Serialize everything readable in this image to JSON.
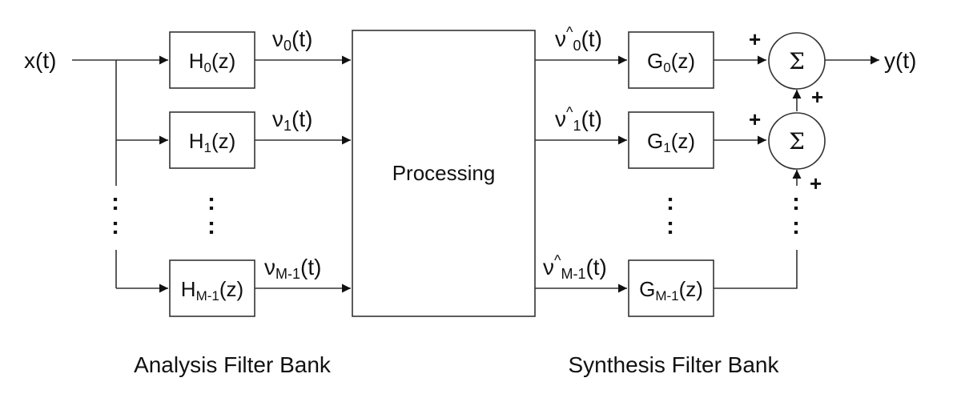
{
  "input_label": "x(t)",
  "output_label": "y(t)",
  "processing_label": "Processing",
  "analysis": {
    "caption": "Analysis Filter Bank",
    "filters": [
      {
        "base": "H",
        "sub": "0",
        "suffix": "(z)"
      },
      {
        "base": "H",
        "sub": "1",
        "suffix": "(z)"
      },
      {
        "base": "H",
        "sub": "M-1",
        "suffix": "(z)"
      }
    ],
    "signals": [
      {
        "base": "ν",
        "sub": "0",
        "suffix": "(t)"
      },
      {
        "base": "ν",
        "sub": "1",
        "suffix": "(t)"
      },
      {
        "base": "ν",
        "sub": "M-1",
        "suffix": "(t)"
      }
    ]
  },
  "synthesis": {
    "caption": "Synthesis Filter Bank",
    "filters": [
      {
        "base": "G",
        "sub": "0",
        "suffix": "(z)"
      },
      {
        "base": "G",
        "sub": "1",
        "suffix": "(z)"
      },
      {
        "base": "G",
        "sub": "M-1",
        "suffix": "(z)"
      }
    ],
    "signals": [
      {
        "base": "ν",
        "hat": "^",
        "sub": "0",
        "suffix": "(t)"
      },
      {
        "base": "ν",
        "hat": "^",
        "sub": "1",
        "suffix": "(t)"
      },
      {
        "base": "ν",
        "hat": "^",
        "sub": "M-1",
        "suffix": "(t)"
      }
    ]
  },
  "adders": [
    {
      "symbol": "Σ",
      "signs": [
        "+",
        "+"
      ]
    },
    {
      "symbol": "Σ",
      "signs": [
        "+",
        "+"
      ]
    }
  ],
  "ellipsis": ":"
}
